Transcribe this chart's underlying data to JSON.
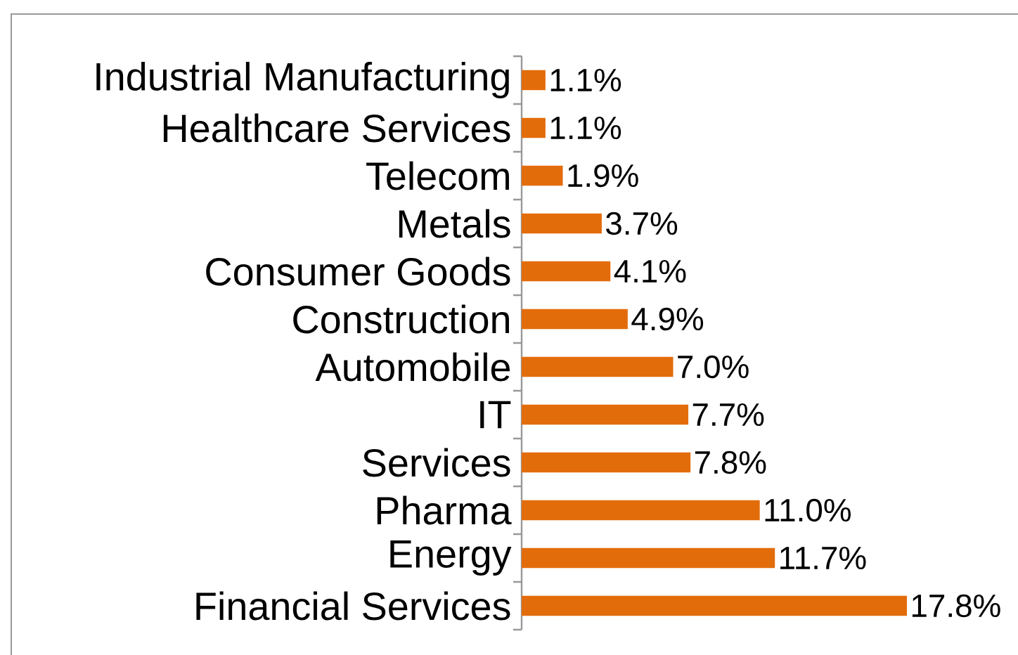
{
  "chart_data": {
    "type": "bar",
    "orientation": "horizontal",
    "categories": [
      "Industrial Manufacturing",
      "Healthcare Services",
      "Telecom",
      "Metals",
      "Consumer Goods",
      "Construction",
      "Automobile",
      "IT",
      "Services",
      "Pharma",
      "Energy",
      "Financial Services"
    ],
    "values": [
      1.1,
      1.1,
      1.9,
      3.7,
      4.1,
      4.9,
      7.0,
      7.7,
      7.8,
      11.0,
      11.7,
      17.8
    ],
    "value_labels": [
      "1.1%",
      "1.1%",
      "1.9%",
      "3.7%",
      "4.1%",
      "4.9%",
      "7.0%",
      "7.7%",
      "7.8%",
      "11.0%",
      "11.7%",
      "17.8%"
    ],
    "color": "#e36c0a"
  }
}
